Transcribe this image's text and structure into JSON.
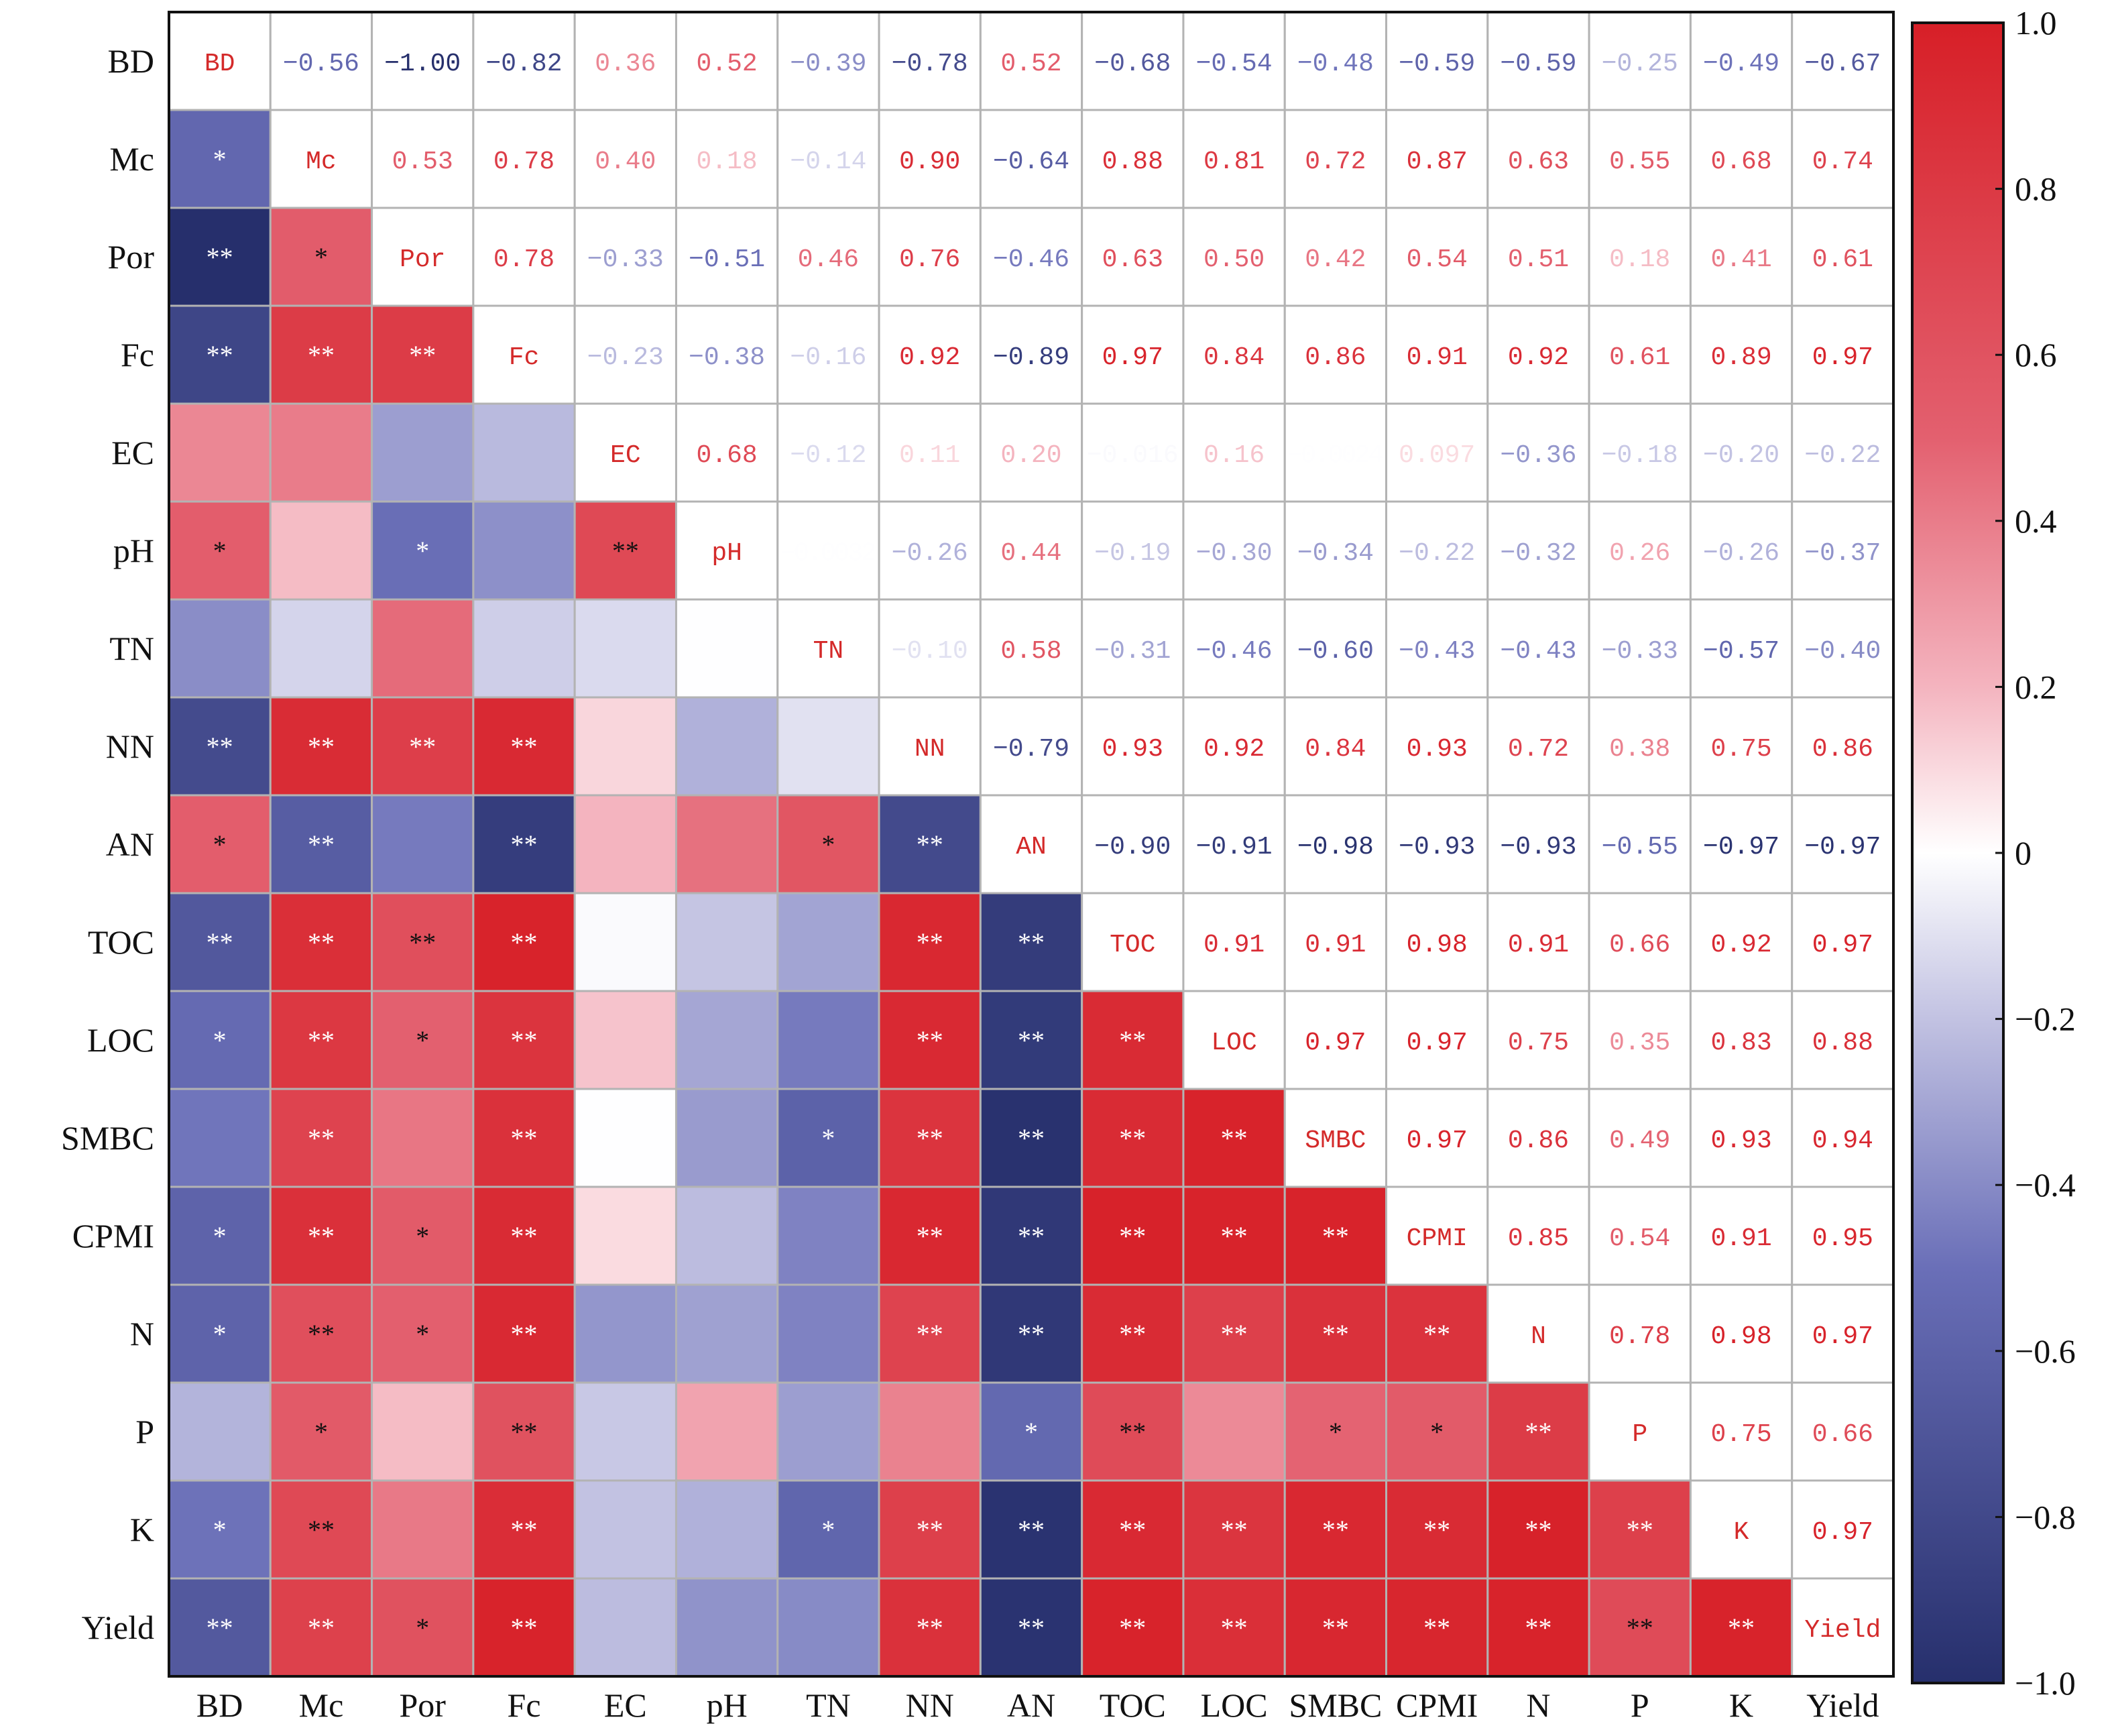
{
  "chart_data": {
    "type": "heatmap",
    "title": "",
    "labels": [
      "BD",
      "Mc",
      "Por",
      "Fc",
      "EC",
      "pH",
      "TN",
      "NN",
      "AN",
      "TOC",
      "LOC",
      "SMBC",
      "CPMI",
      "N",
      "P",
      "K",
      "Yield"
    ],
    "upper": [
      [
        "−0.56",
        "−1.00",
        "−0.82",
        "0.36",
        "0.52",
        "−0.39",
        "−0.78",
        "0.52",
        "−0.68",
        "−0.54",
        "−0.48",
        "−0.59",
        "−0.59",
        "−0.25",
        "−0.49",
        "−0.67"
      ],
      [
        "0.53",
        "0.78",
        "0.40",
        "0.18",
        "−0.14",
        "0.90",
        "−0.64",
        "0.88",
        "0.81",
        "0.72",
        "0.87",
        "0.63",
        "0.55",
        "0.68",
        "0.74"
      ],
      [
        "0.78",
        "−0.33",
        "−0.51",
        "0.46",
        "0.76",
        "−0.46",
        "0.63",
        "0.50",
        "0.42",
        "0.54",
        "0.51",
        "0.18",
        "0.41",
        "0.61"
      ],
      [
        "−0.23",
        "−0.38",
        "−0.16",
        "0.92",
        "−0.89",
        "0.97",
        "0.84",
        "0.86",
        "0.91",
        "0.92",
        "0.61",
        "0.89",
        "0.97"
      ],
      [
        "0.68",
        "−0.12",
        "0.11",
        "0.20",
        "−0.016",
        "0.16",
        "−0.0024",
        "0.097",
        "−0.36",
        "−0.18",
        "−0.20",
        "−0.22"
      ],
      [
        "−0.0032",
        "−0.26",
        "0.44",
        "−0.19",
        "−0.30",
        "−0.34",
        "−0.22",
        "−0.32",
        "0.26",
        "−0.26",
        "−0.37"
      ],
      [
        "−0.10",
        "0.58",
        "−0.31",
        "−0.46",
        "−0.60",
        "−0.43",
        "−0.43",
        "−0.33",
        "−0.57",
        "−0.40"
      ],
      [
        "−0.79",
        "0.93",
        "0.92",
        "0.84",
        "0.93",
        "0.72",
        "0.38",
        "0.75",
        "0.86"
      ],
      [
        "−0.90",
        "−0.91",
        "−0.98",
        "−0.93",
        "−0.93",
        "−0.55",
        "−0.97",
        "−0.97"
      ],
      [
        "0.91",
        "0.91",
        "0.98",
        "0.91",
        "0.66",
        "0.92",
        "0.97"
      ],
      [
        "0.97",
        "0.97",
        "0.75",
        "0.35",
        "0.83",
        "0.88"
      ],
      [
        "0.97",
        "0.86",
        "0.49",
        "0.93",
        "0.94"
      ],
      [
        "0.85",
        "0.54",
        "0.91",
        "0.95"
      ],
      [
        "0.78",
        "0.98",
        "0.97"
      ],
      [
        "0.75",
        "0.66"
      ],
      [
        "0.97"
      ],
      []
    ],
    "lower_significance": [
      [],
      [
        "*"
      ],
      [
        "**",
        "*"
      ],
      [
        "**",
        "**",
        "**"
      ],
      [
        "",
        "",
        "",
        ""
      ],
      [
        "*",
        "",
        "*",
        "",
        "**"
      ],
      [
        "",
        "",
        "",
        "",
        "",
        ""
      ],
      [
        "**",
        "**",
        "**",
        "**",
        "",
        "",
        ""
      ],
      [
        "*",
        "**",
        "",
        "**",
        "",
        "",
        "*",
        "**"
      ],
      [
        "**",
        "**",
        "**",
        "**",
        "",
        "",
        "",
        "**",
        "**"
      ],
      [
        "*",
        "**",
        "*",
        "**",
        "",
        "",
        "",
        "**",
        "**",
        "**"
      ],
      [
        "",
        "**",
        "",
        "**",
        "",
        "",
        "*",
        "**",
        "**",
        "**",
        "**"
      ],
      [
        "*",
        "**",
        "*",
        "**",
        "",
        "",
        "",
        "**",
        "**",
        "**",
        "**",
        "**"
      ],
      [
        "*",
        "**",
        "*",
        "**",
        "",
        "",
        "",
        "**",
        "**",
        "**",
        "**",
        "**",
        "**"
      ],
      [
        "",
        "*",
        "",
        "**",
        "",
        "",
        "",
        "",
        "*",
        "**",
        "",
        "*",
        "*",
        "**"
      ],
      [
        "*",
        "**",
        "",
        "**",
        "",
        "",
        "*",
        "**",
        "**",
        "**",
        "**",
        "**",
        "**",
        "**",
        "**"
      ],
      [
        "**",
        "**",
        "*",
        "**",
        "",
        "",
        "",
        "**",
        "**",
        "**",
        "**",
        "**",
        "**",
        "**",
        "**",
        "**"
      ]
    ],
    "colorbar": {
      "range": [
        -1.0,
        1.0
      ],
      "ticks": [
        "1.0",
        "0.8",
        "0.6",
        "0.4",
        "0.2",
        "0",
        "−0.2",
        "−0.4",
        "−0.6",
        "−0.8",
        "−1.0"
      ],
      "colors": {
        "neg": "#2a3378",
        "zero": "#ffffff",
        "pos": "#d8222a"
      }
    },
    "diagonal_label_color": "#d42a2a"
  }
}
